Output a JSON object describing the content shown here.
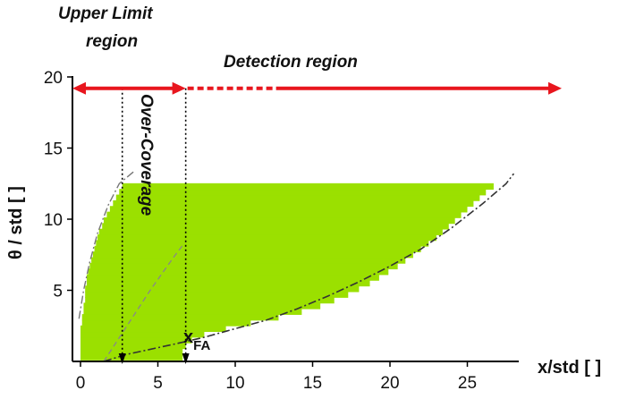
{
  "chart_data": {
    "type": "area",
    "title": "",
    "xlabel": "x/std [ ]",
    "ylabel": "θ / std [ ]",
    "xlim": [
      -0.5,
      29
    ],
    "ylim": [
      0,
      20.5
    ],
    "x_ticks": [
      "0",
      "5",
      "10",
      "15",
      "20",
      "25"
    ],
    "y_ticks": [
      "5",
      "10",
      "15",
      "20"
    ],
    "grid": false,
    "band_color": "#9be000",
    "bands": [
      {
        "y": 0.3,
        "x_start": 0,
        "x_end": 6.6
      },
      {
        "y": 0.7,
        "x_start": 0,
        "x_end": 6.6
      },
      {
        "y": 1.1,
        "x_start": 0,
        "x_end": 6.8
      },
      {
        "y": 1.5,
        "x_start": 0,
        "x_end": 7.2
      },
      {
        "y": 1.9,
        "x_start": 0,
        "x_end": 8.0
      },
      {
        "y": 2.3,
        "x_start": 0,
        "x_end": 9.4
      },
      {
        "y": 2.7,
        "x_start": 0.1,
        "x_end": 11.0
      },
      {
        "y": 3.1,
        "x_start": 0.1,
        "x_end": 12.8
      },
      {
        "y": 3.5,
        "x_start": 0.2,
        "x_end": 14.3
      },
      {
        "y": 3.9,
        "x_start": 0.2,
        "x_end": 15.5
      },
      {
        "y": 4.3,
        "x_start": 0.3,
        "x_end": 16.4
      },
      {
        "y": 4.7,
        "x_start": 0.3,
        "x_end": 17.3
      },
      {
        "y": 5.1,
        "x_start": 0.3,
        "x_end": 18.0
      },
      {
        "y": 5.5,
        "x_start": 0.4,
        "x_end": 18.7
      },
      {
        "y": 5.9,
        "x_start": 0.4,
        "x_end": 19.3
      },
      {
        "y": 6.3,
        "x_start": 0.5,
        "x_end": 19.9
      },
      {
        "y": 6.7,
        "x_start": 0.6,
        "x_end": 20.5
      },
      {
        "y": 7.1,
        "x_start": 0.7,
        "x_end": 21.0
      },
      {
        "y": 7.5,
        "x_start": 0.8,
        "x_end": 21.5
      },
      {
        "y": 7.9,
        "x_start": 0.9,
        "x_end": 22.0
      },
      {
        "y": 8.3,
        "x_start": 1.0,
        "x_end": 22.5
      },
      {
        "y": 8.7,
        "x_start": 1.1,
        "x_end": 23.0
      },
      {
        "y": 9.1,
        "x_start": 1.2,
        "x_end": 23.4
      },
      {
        "y": 9.5,
        "x_start": 1.4,
        "x_end": 23.8
      },
      {
        "y": 9.9,
        "x_start": 1.5,
        "x_end": 24.2
      },
      {
        "y": 10.3,
        "x_start": 1.7,
        "x_end": 24.6
      },
      {
        "y": 10.7,
        "x_start": 1.9,
        "x_end": 25.0
      },
      {
        "y": 11.1,
        "x_start": 2.1,
        "x_end": 25.4
      },
      {
        "y": 11.5,
        "x_start": 2.3,
        "x_end": 25.8
      },
      {
        "y": 11.9,
        "x_start": 2.5,
        "x_end": 26.2
      },
      {
        "y": 12.3,
        "x_start": 2.7,
        "x_end": 26.7
      }
    ],
    "lower_boundary_curve": [
      [
        1.5,
        0
      ],
      [
        3,
        0.5
      ],
      [
        6,
        1.2
      ],
      [
        8,
        1.7
      ],
      [
        10,
        2.3
      ],
      [
        12,
        2.9
      ],
      [
        14,
        3.7
      ],
      [
        16,
        4.6
      ],
      [
        18,
        5.6
      ],
      [
        20,
        6.7
      ],
      [
        22,
        7.9
      ],
      [
        24,
        9.4
      ],
      [
        26,
        11.1
      ],
      [
        27.5,
        12.5
      ],
      [
        28,
        13.2
      ]
    ],
    "upper_limit_curve": [
      [
        -0.1,
        3
      ],
      [
        0.2,
        5
      ],
      [
        0.6,
        7
      ],
      [
        1.1,
        9
      ],
      [
        1.8,
        11
      ],
      [
        2.5,
        12.5
      ],
      [
        3.5,
        13.4
      ]
    ],
    "coverage_curve": [
      [
        1.5,
        0
      ],
      [
        3,
        2.5
      ],
      [
        4.5,
        5
      ],
      [
        6,
        7.3
      ],
      [
        6.7,
        8.3
      ]
    ],
    "vertical_markers": [
      {
        "name": "over-coverage-bound",
        "x": 2.7
      },
      {
        "name": "x-fa",
        "x": 6.8
      }
    ],
    "annotations": {
      "upper_limit_line1": "Upper Limit",
      "upper_limit_line2": "region",
      "detection": "Detection region",
      "over_coverage": "Over-Coverage",
      "x_fa_main": "x",
      "x_fa_sub": "FA"
    },
    "arrow_y": 19.2,
    "arrow_color": "#e8161e"
  }
}
